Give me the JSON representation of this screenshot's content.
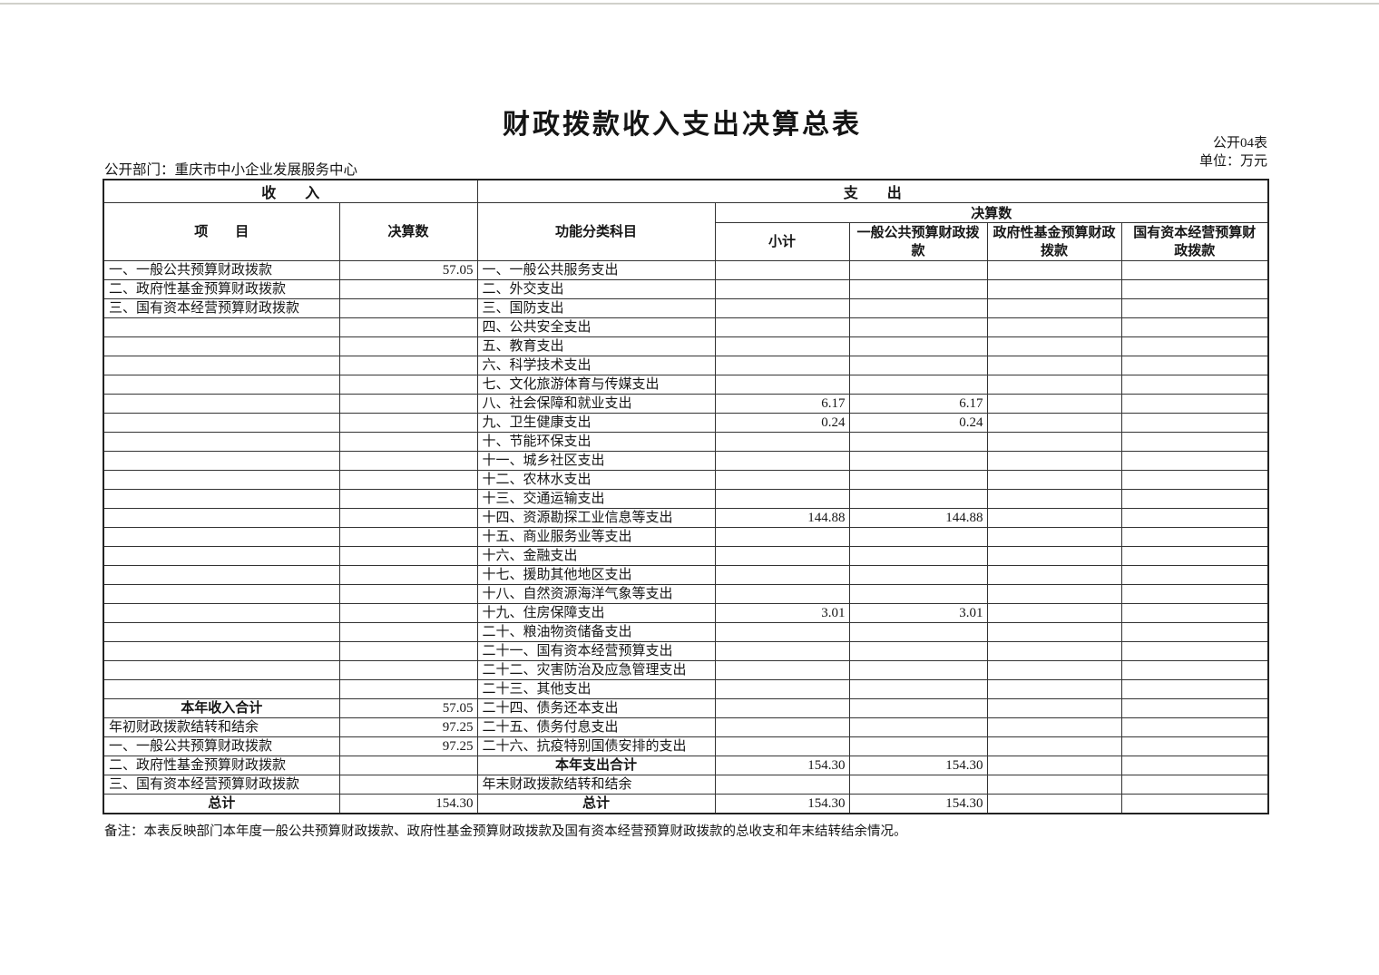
{
  "header": {
    "title": "财政拨款收入支出决算总表",
    "form_code": "公开04表",
    "unit": "单位：万元",
    "department": "公开部门：重庆市中小企业发展服务中心"
  },
  "table": {
    "sections": {
      "income": "收　　入",
      "expense": "支　　出"
    },
    "columns": {
      "item": "项　　目",
      "income_amount": "决算数",
      "function_subject": "功能分类科目",
      "expense_amount_group": "决算数",
      "subtotal": "小计",
      "general_budget": "一般公共预算财政拨款",
      "gov_fund_budget": "政府性基金预算财政拨款",
      "state_capital_budget": "国有资本经营预算财政拨款"
    },
    "rows": [
      {
        "income_item": "一、一般公共预算财政拨款",
        "income_value": "57.05",
        "expense_item": "一、一般公共服务支出",
        "subtotal": "",
        "general": "",
        "gov_fund": "",
        "state_capital": ""
      },
      {
        "income_item": "二、政府性基金预算财政拨款",
        "income_value": "",
        "expense_item": "二、外交支出",
        "subtotal": "",
        "general": "",
        "gov_fund": "",
        "state_capital": ""
      },
      {
        "income_item": "三、国有资本经营预算财政拨款",
        "income_value": "",
        "expense_item": "三、国防支出",
        "subtotal": "",
        "general": "",
        "gov_fund": "",
        "state_capital": ""
      },
      {
        "income_item": "",
        "income_value": "",
        "expense_item": "四、公共安全支出",
        "subtotal": "",
        "general": "",
        "gov_fund": "",
        "state_capital": ""
      },
      {
        "income_item": "",
        "income_value": "",
        "expense_item": "五、教育支出",
        "subtotal": "",
        "general": "",
        "gov_fund": "",
        "state_capital": ""
      },
      {
        "income_item": "",
        "income_value": "",
        "expense_item": "六、科学技术支出",
        "subtotal": "",
        "general": "",
        "gov_fund": "",
        "state_capital": ""
      },
      {
        "income_item": "",
        "income_value": "",
        "expense_item": "七、文化旅游体育与传媒支出",
        "subtotal": "",
        "general": "",
        "gov_fund": "",
        "state_capital": ""
      },
      {
        "income_item": "",
        "income_value": "",
        "expense_item": "八、社会保障和就业支出",
        "subtotal": "6.17",
        "general": "6.17",
        "gov_fund": "",
        "state_capital": ""
      },
      {
        "income_item": "",
        "income_value": "",
        "expense_item": "九、卫生健康支出",
        "subtotal": "0.24",
        "general": "0.24",
        "gov_fund": "",
        "state_capital": ""
      },
      {
        "income_item": "",
        "income_value": "",
        "expense_item": "十、节能环保支出",
        "subtotal": "",
        "general": "",
        "gov_fund": "",
        "state_capital": ""
      },
      {
        "income_item": "",
        "income_value": "",
        "expense_item": "十一、城乡社区支出",
        "subtotal": "",
        "general": "",
        "gov_fund": "",
        "state_capital": ""
      },
      {
        "income_item": "",
        "income_value": "",
        "expense_item": "十二、农林水支出",
        "subtotal": "",
        "general": "",
        "gov_fund": "",
        "state_capital": ""
      },
      {
        "income_item": "",
        "income_value": "",
        "expense_item": "十三、交通运输支出",
        "subtotal": "",
        "general": "",
        "gov_fund": "",
        "state_capital": ""
      },
      {
        "income_item": "",
        "income_value": "",
        "expense_item": "十四、资源勘探工业信息等支出",
        "subtotal": "144.88",
        "general": "144.88",
        "gov_fund": "",
        "state_capital": ""
      },
      {
        "income_item": "",
        "income_value": "",
        "expense_item": "十五、商业服务业等支出",
        "subtotal": "",
        "general": "",
        "gov_fund": "",
        "state_capital": ""
      },
      {
        "income_item": "",
        "income_value": "",
        "expense_item": "十六、金融支出",
        "subtotal": "",
        "general": "",
        "gov_fund": "",
        "state_capital": ""
      },
      {
        "income_item": "",
        "income_value": "",
        "expense_item": "十七、援助其他地区支出",
        "subtotal": "",
        "general": "",
        "gov_fund": "",
        "state_capital": ""
      },
      {
        "income_item": "",
        "income_value": "",
        "expense_item": "十八、自然资源海洋气象等支出",
        "subtotal": "",
        "general": "",
        "gov_fund": "",
        "state_capital": ""
      },
      {
        "income_item": "",
        "income_value": "",
        "expense_item": "十九、住房保障支出",
        "subtotal": "3.01",
        "general": "3.01",
        "gov_fund": "",
        "state_capital": ""
      },
      {
        "income_item": "",
        "income_value": "",
        "expense_item": "二十、粮油物资储备支出",
        "subtotal": "",
        "general": "",
        "gov_fund": "",
        "state_capital": ""
      },
      {
        "income_item": "",
        "income_value": "",
        "expense_item": "二十一、国有资本经营预算支出",
        "subtotal": "",
        "general": "",
        "gov_fund": "",
        "state_capital": ""
      },
      {
        "income_item": "",
        "income_value": "",
        "expense_item": "二十二、灾害防治及应急管理支出",
        "subtotal": "",
        "general": "",
        "gov_fund": "",
        "state_capital": ""
      },
      {
        "income_item": "",
        "income_value": "",
        "expense_item": "二十三、其他支出",
        "subtotal": "",
        "general": "",
        "gov_fund": "",
        "state_capital": ""
      },
      {
        "income_item": "本年收入合计",
        "income_style": "total",
        "income_value": "57.05",
        "expense_item": "二十四、债务还本支出",
        "subtotal": "",
        "general": "",
        "gov_fund": "",
        "state_capital": ""
      },
      {
        "income_item": "年初财政拨款结转和结余",
        "income_value": "97.25",
        "expense_item": "二十五、债务付息支出",
        "subtotal": "",
        "general": "",
        "gov_fund": "",
        "state_capital": ""
      },
      {
        "income_item": "一、一般公共预算财政拨款",
        "income_value": "97.25",
        "expense_item": "二十六、抗疫特别国债安排的支出",
        "subtotal": "",
        "general": "",
        "gov_fund": "",
        "state_capital": ""
      },
      {
        "income_item": "二、政府性基金预算财政拨款",
        "income_value": "",
        "expense_item": "本年支出合计",
        "expense_style": "total",
        "subtotal": "154.30",
        "general": "154.30",
        "gov_fund": "",
        "state_capital": ""
      },
      {
        "income_item": "三、国有资本经营预算财政拨款",
        "income_value": "",
        "expense_item": "年末财政拨款结转和结余",
        "subtotal": "",
        "general": "",
        "gov_fund": "",
        "state_capital": ""
      },
      {
        "income_item": "总计",
        "income_style": "total",
        "income_value": "154.30",
        "expense_item": "总计",
        "expense_style": "total",
        "subtotal": "154.30",
        "general": "154.30",
        "gov_fund": "",
        "state_capital": ""
      }
    ]
  },
  "footer": {
    "note": "备注：本表反映部门本年度一般公共预算财政拨款、政府性基金预算财政拨款及国有资本经营预算财政拨款的总收支和年末结转结余情况。"
  }
}
